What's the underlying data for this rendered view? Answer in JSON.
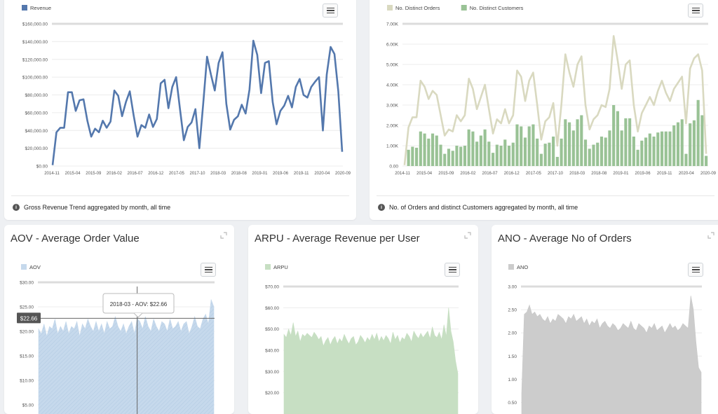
{
  "cards": {
    "revenue": {
      "note": "Gross Revenue Trend aggregated by month, all time"
    },
    "orders": {
      "note": "No. of Orders and distinct Customers aggregated by month, all time"
    },
    "aov": {
      "title": "AOV - Average Order Value",
      "tooltip": "2018-03 - AOV: $22.66",
      "crosshair_label": "$22.66"
    },
    "arpu": {
      "title": "ARPU - Average Revenue per User"
    },
    "ano": {
      "title": "ANO - Average No of Orders"
    }
  },
  "colors": {
    "revenue": "#5478ad",
    "orders": "#d9d9c0",
    "customers": "#99c295",
    "aov": "#c6d9ec",
    "arpu": "#c7dfc3",
    "ano": "#cccccc"
  },
  "icons": [
    "hamburger-menu-icon",
    "info-icon",
    "expand-icon"
  ],
  "chart_data": [
    {
      "id": "revenue",
      "type": "line",
      "x_tick_labels": [
        "2014-11",
        "2015-04",
        "2015-09",
        "2016-02",
        "2016-07",
        "2016-12",
        "2017-05",
        "2017-10",
        "2018-03",
        "2018-08",
        "2019-01",
        "2019-06",
        "2019-11",
        "2020-04",
        "2020-09"
      ],
      "y_tick_labels": [
        "$0.00",
        "$20,000.00",
        "$40,000.00",
        "$60,000.00",
        "$80,000.00",
        "$100,000.00",
        "$120,000.00",
        "$140,000.00",
        "$160,000.00"
      ],
      "ylim": [
        0,
        160000
      ],
      "series": [
        {
          "name": "Revenue",
          "values": [
            1000,
            38000,
            43000,
            43000,
            83000,
            83000,
            62000,
            74000,
            75000,
            51000,
            33000,
            42000,
            38000,
            51000,
            43000,
            50000,
            85000,
            79000,
            56000,
            72000,
            84000,
            57000,
            33000,
            46000,
            43000,
            58000,
            44000,
            53000,
            93000,
            97000,
            65000,
            89000,
            100000,
            64000,
            29000,
            44000,
            49000,
            64000,
            20000,
            70000,
            123000,
            103000,
            85000,
            116000,
            128000,
            70000,
            41000,
            52000,
            56000,
            69000,
            59000,
            86000,
            141000,
            125000,
            82000,
            116000,
            118000,
            72000,
            47000,
            62000,
            68000,
            79000,
            66000,
            89000,
            98000,
            80000,
            77000,
            89000,
            95000,
            100000,
            40000,
            103000,
            134000,
            126000,
            84000,
            16000
          ]
        }
      ]
    },
    {
      "id": "orders",
      "type": "bar",
      "x_tick_labels": [
        "2014-11",
        "2015-04",
        "2015-09",
        "2016-02",
        "2016-07",
        "2016-12",
        "2017-05",
        "2017-10",
        "2018-03",
        "2018-08",
        "2019-01",
        "2019-06",
        "2019-11",
        "2020-04",
        "2020-09"
      ],
      "y_tick_labels": [
        "0.00",
        "1.00K",
        "2.00K",
        "3.00K",
        "4.00K",
        "5.00K",
        "6.00K",
        "7.00K"
      ],
      "ylim": [
        0,
        7000
      ],
      "series": [
        {
          "name": "No. Distinct Orders",
          "type": "line",
          "values": [
            40,
            1900,
            2400,
            2400,
            4200,
            3900,
            3300,
            3700,
            3500,
            2500,
            1500,
            1800,
            1700,
            2500,
            2200,
            2500,
            4300,
            3800,
            2800,
            3400,
            4000,
            2800,
            1600,
            2300,
            2100,
            2800,
            2100,
            2500,
            4700,
            4400,
            3200,
            4200,
            4600,
            3000,
            1300,
            2200,
            2400,
            3100,
            1000,
            3000,
            5500,
            4600,
            3900,
            5000,
            5400,
            3000,
            1800,
            2300,
            2500,
            3000,
            2900,
            3800,
            6400,
            5200,
            3800,
            5000,
            5200,
            3000,
            1700,
            2600,
            3000,
            3400,
            3000,
            3700,
            4200,
            3600,
            3200,
            3800,
            4100,
            4400,
            2100,
            4800,
            5300,
            5500,
            4700,
            600
          ]
        },
        {
          "name": "No. Distinct Customers",
          "type": "bar",
          "values": [
            0,
            800,
            950,
            900,
            1700,
            1600,
            1350,
            1600,
            1500,
            1050,
            600,
            850,
            750,
            1000,
            950,
            1000,
            1800,
            1700,
            1200,
            1500,
            1800,
            1200,
            650,
            1050,
            1000,
            1300,
            1000,
            1150,
            2050,
            1950,
            1400,
            1950,
            2050,
            1350,
            600,
            1100,
            1150,
            1450,
            450,
            1350,
            2300,
            2150,
            1750,
            2300,
            2500,
            1300,
            850,
            1050,
            1150,
            1450,
            1400,
            1750,
            3000,
            2700,
            1750,
            2350,
            2350,
            1450,
            800,
            1250,
            1400,
            1600,
            1450,
            1650,
            1700,
            1700,
            1700,
            2000,
            2150,
            2300,
            600,
            2100,
            2250,
            3250,
            2500,
            500
          ]
        }
      ]
    },
    {
      "id": "aov",
      "type": "area",
      "y_tick_labels": [
        "$5.00",
        "$10.00",
        "$15.00",
        "$20.00",
        "$25.00",
        "$30.00"
      ],
      "ylim": [
        5,
        30
      ],
      "series": [
        {
          "name": "AOV",
          "values": [
            20.5,
            19.5,
            21.5,
            19.0,
            21.0,
            20.5,
            22.5,
            19.5,
            21.0,
            20.0,
            22.0,
            19.5,
            21.0,
            20.5,
            22.0,
            19.0,
            21.5,
            20.5,
            22.5,
            21.0,
            20.0,
            22.0,
            20.0,
            21.5,
            19.5,
            22.0,
            20.5,
            21.0,
            23.0,
            21.0,
            20.0,
            21.5,
            19.5,
            21.0,
            22.0,
            19.5,
            22.66,
            22.0,
            20.5,
            23.0,
            21.0,
            20.0,
            22.5,
            21.0,
            20.0,
            22.0,
            21.5,
            20.0,
            22.5,
            20.5,
            21.0,
            22.0,
            20.0,
            21.5,
            22.0,
            19.5,
            21.0,
            23.0,
            21.0,
            20.5,
            22.5,
            23.5,
            21.5,
            26.5,
            25.0
          ]
        }
      ],
      "crosshair": {
        "category": "2018-03",
        "value": 22.66
      }
    },
    {
      "id": "arpu",
      "type": "area",
      "y_tick_labels": [
        "$20.00",
        "$30.00",
        "$40.00",
        "$50.00",
        "$60.00",
        "$70.00"
      ],
      "ylim": [
        10,
        70
      ],
      "series": [
        {
          "name": "ARPU",
          "values": [
            47.5,
            46.0,
            50.0,
            47.0,
            53.0,
            46.5,
            49.0,
            44.0,
            47.5,
            46.5,
            48.0,
            47.0,
            46.0,
            48.5,
            47.0,
            45.0,
            46.5,
            42.0,
            44.5,
            46.0,
            42.5,
            45.0,
            46.5,
            43.0,
            45.5,
            44.0,
            47.5,
            45.0,
            43.0,
            45.5,
            46.5,
            42.5,
            44.0,
            47.0,
            45.5,
            43.5,
            46.0,
            44.5,
            47.5,
            45.0,
            48.0,
            44.0,
            46.5,
            44.5,
            47.0,
            45.5,
            43.0,
            48.5,
            45.0,
            47.0,
            43.5,
            46.0,
            45.0,
            48.0,
            46.5,
            44.0,
            49.0,
            47.0,
            45.5,
            48.0,
            46.0,
            47.5,
            49.0,
            45.5,
            51.0,
            47.0,
            46.0,
            48.5,
            45.0,
            52.0,
            46.5,
            60.0,
            49.0,
            44.0,
            35.0,
            29.0
          ]
        }
      ]
    },
    {
      "id": "ano",
      "type": "area",
      "y_tick_labels": [
        "0.50",
        "1.00",
        "1.50",
        "2.00",
        "2.50",
        "3.00"
      ],
      "ylim": [
        0.25,
        3.0
      ],
      "series": [
        {
          "name": "ANO",
          "values": [
            0.7,
            2.4,
            2.45,
            2.6,
            2.4,
            2.45,
            2.35,
            2.4,
            2.3,
            2.25,
            2.35,
            2.2,
            2.3,
            2.25,
            2.4,
            2.35,
            2.3,
            2.2,
            2.35,
            2.3,
            2.4,
            2.25,
            2.3,
            2.35,
            2.2,
            2.3,
            2.15,
            2.25,
            2.2,
            2.3,
            2.1,
            2.2,
            2.25,
            2.15,
            2.1,
            2.2,
            2.15,
            2.05,
            2.1,
            2.2,
            2.15,
            2.1,
            2.25,
            2.1,
            2.05,
            2.2,
            2.15,
            2.1,
            2.0,
            2.15,
            2.1,
            2.2,
            2.05,
            2.1,
            2.15,
            2.0,
            2.1,
            2.2,
            2.1,
            2.15,
            2.05,
            2.1,
            2.2,
            2.15,
            2.1,
            2.8,
            2.5,
            1.8,
            1.25,
            1.15
          ]
        }
      ]
    }
  ]
}
